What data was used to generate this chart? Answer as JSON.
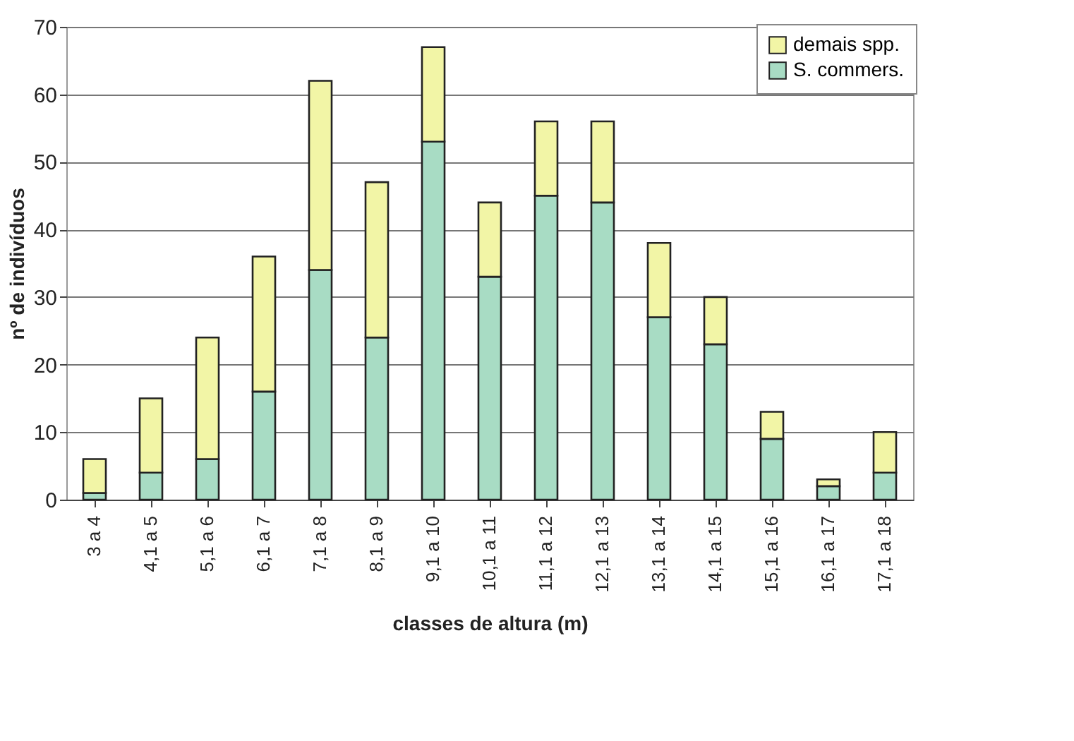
{
  "chart_data": {
    "type": "bar",
    "stacked": true,
    "xlabel": "classes de altura (m)",
    "ylabel": "nº de indivíduos",
    "categories": [
      "3 a 4",
      "4,1 a 5",
      "5,1 a 6",
      "6,1 a 7",
      "7,1 a 8",
      "8,1 a 9",
      "9,1 a 10",
      "10,1 a 11",
      "11,1 a 12",
      "12,1 a 13",
      "13,1 a 14",
      "14,1 a 15",
      "15,1 a 16",
      "16,1 a 17",
      "17,1 a 18"
    ],
    "series": [
      {
        "name": "S. commers.",
        "color": "#a8dcc4",
        "values": [
          1,
          4,
          6,
          16,
          34,
          24,
          53,
          33,
          45,
          44,
          27,
          23,
          9,
          2,
          4
        ]
      },
      {
        "name": "demais spp.",
        "color": "#f2f5a6",
        "values": [
          5,
          11,
          18,
          20,
          28,
          23,
          14,
          11,
          11,
          12,
          11,
          7,
          4,
          1,
          6
        ]
      }
    ],
    "ylim": [
      0,
      70
    ],
    "yticks": [
      0,
      10,
      20,
      30,
      40,
      50,
      60,
      70
    ],
    "grid": "y",
    "legend": "top right"
  }
}
